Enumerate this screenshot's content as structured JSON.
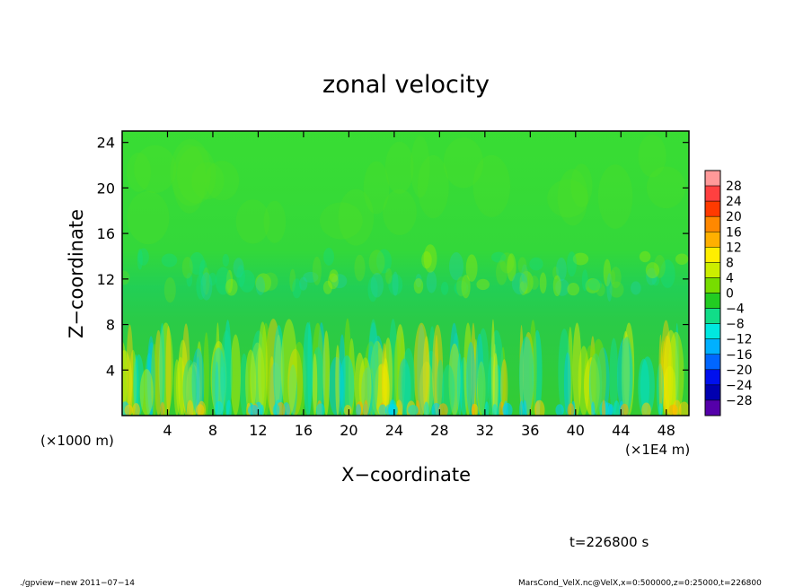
{
  "chart_data": {
    "type": "heatmap",
    "title": "zonal velocity",
    "xlabel": "X−coordinate",
    "ylabel": "Z−coordinate",
    "x_unit_left": "(×1000 m)",
    "x_unit_right": "(×1E4 m)",
    "xlim": [
      0,
      50
    ],
    "ylim": [
      0,
      25
    ],
    "xticks": [
      4,
      8,
      12,
      16,
      20,
      24,
      28,
      32,
      36,
      40,
      44,
      48
    ],
    "yticks": [
      4,
      8,
      12,
      16,
      20,
      24
    ],
    "colorbar": {
      "levels": [
        28,
        24,
        20,
        16,
        12,
        8,
        4,
        0,
        -4,
        -8,
        -12,
        -16,
        -20,
        -24,
        -28
      ],
      "labels": [
        "28",
        "24",
        "20",
        "16",
        "12",
        "8",
        "4",
        "0",
        "−4",
        "−8",
        "−12",
        "−16",
        "−20",
        "−24",
        "−28"
      ],
      "colors": [
        "#ff9999",
        "#ff4040",
        "#ff3a00",
        "#ff8800",
        "#ffb000",
        "#ffee00",
        "#ccee00",
        "#77dd00",
        "#22cc22",
        "#11dd88",
        "#00e8e0",
        "#00b0ff",
        "#0066ff",
        "#0010ee",
        "#0000b0",
        "#5500aa"
      ]
    },
    "regions": [
      {
        "z_range": [
          14,
          25
        ],
        "description_value": "0 to 4",
        "color": "#33dd33"
      },
      {
        "z_range": [
          9,
          14
        ],
        "description_value": "-4 to 4",
        "color": "#22cc55"
      },
      {
        "z_range": [
          0,
          9
        ],
        "description_value": "-12 to 12",
        "color": "#33cc33"
      }
    ]
  },
  "annotations": {
    "time": "t=226800 s",
    "footer_left": "./gpview−new   2011−07−14",
    "footer_right": "MarsCond_VelX.nc@VelX,x=0:500000,z=0:25000,t=226800"
  }
}
